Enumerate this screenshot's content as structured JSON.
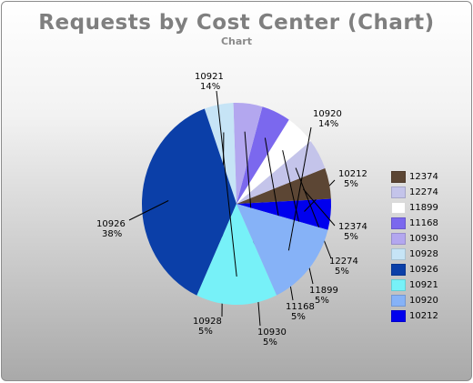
{
  "title": "Requests by Cost Center (Chart)",
  "subtitle": "Chart",
  "chart_data": {
    "type": "pie",
    "title": "Requests by Cost Center (Chart)",
    "subtitle": "Chart",
    "legend_placement": "right",
    "slices": [
      {
        "label": "10212",
        "value": 5,
        "pct_label": "5%",
        "color": "#0000ee"
      },
      {
        "label": "12374",
        "value": 5,
        "pct_label": "5%",
        "color": "#5c4634"
      },
      {
        "label": "12274",
        "value": 5,
        "pct_label": "5%",
        "color": "#c4c4ea"
      },
      {
        "label": "11899",
        "value": 5,
        "pct_label": "5%",
        "color": "#ffffff"
      },
      {
        "label": "11168",
        "value": 5,
        "pct_label": "5%",
        "color": "#7b68ee"
      },
      {
        "label": "10930",
        "value": 5,
        "pct_label": "5%",
        "color": "#b3a7ef"
      },
      {
        "label": "10928",
        "value": 5,
        "pct_label": "5%",
        "color": "#c6e4f6"
      },
      {
        "label": "10926",
        "value": 38,
        "pct_label": "38%",
        "color": "#0b3fa8"
      },
      {
        "label": "10921",
        "value": 14,
        "pct_label": "14%",
        "color": "#77f1f8"
      },
      {
        "label": "10920",
        "value": 14,
        "pct_label": "14%",
        "color": "#86b2f7"
      }
    ],
    "legend": [
      "12374",
      "12274",
      "11899",
      "11168",
      "10930",
      "10928",
      "10926",
      "10921",
      "10920",
      "10212"
    ]
  }
}
